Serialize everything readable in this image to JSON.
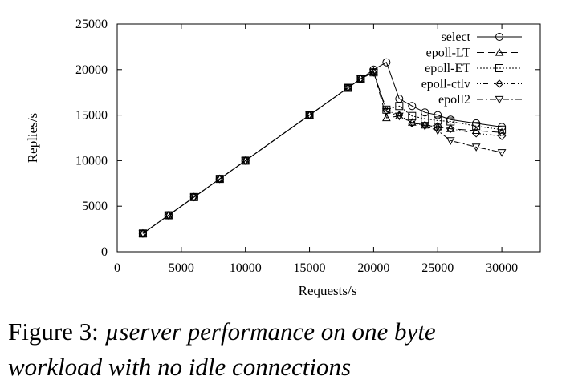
{
  "caption": {
    "label": "Figure 3:",
    "line1": "µserver performance on one byte",
    "line2": "workload with no idle connections"
  },
  "chart_data": {
    "type": "line",
    "xlabel": "Requests/s",
    "ylabel": "Replies/s",
    "xlim": [
      0,
      33000
    ],
    "ylim": [
      0,
      25000
    ],
    "xticks": [
      0,
      5000,
      10000,
      15000,
      20000,
      25000,
      30000
    ],
    "yticks": [
      0,
      5000,
      10000,
      15000,
      20000,
      25000
    ],
    "grid": false,
    "legend_position": "top-right",
    "series": [
      {
        "name": "select",
        "marker": "circle",
        "dash": "",
        "x": [
          2000,
          4000,
          6000,
          8000,
          10000,
          15000,
          18000,
          19000,
          20000,
          21000,
          22000,
          23000,
          24000,
          25000,
          26000,
          28000,
          30000
        ],
        "y": [
          2000,
          4000,
          6000,
          8000,
          10000,
          15000,
          18000,
          19000,
          20000,
          20800,
          16800,
          16000,
          15300,
          15000,
          14500,
          14100,
          13700
        ]
      },
      {
        "name": "epoll-LT",
        "marker": "triangle-up",
        "dash": "9,5",
        "x": [
          2000,
          4000,
          6000,
          8000,
          10000,
          15000,
          18000,
          19000,
          20000,
          21000,
          22000,
          23000,
          24000,
          25000,
          26000,
          28000,
          30000
        ],
        "y": [
          2000,
          4000,
          6000,
          8000,
          10000,
          15000,
          18000,
          19000,
          19800,
          14700,
          14900,
          14200,
          13900,
          13700,
          13500,
          13300,
          13100
        ]
      },
      {
        "name": "epoll-ET",
        "marker": "square",
        "dash": "2,2",
        "x": [
          2000,
          4000,
          6000,
          8000,
          10000,
          15000,
          18000,
          19000,
          20000,
          21000,
          22000,
          23000,
          24000,
          25000,
          26000,
          28000,
          30000
        ],
        "y": [
          2000,
          4000,
          6000,
          8000,
          10000,
          15000,
          18000,
          19000,
          19700,
          15600,
          16000,
          14900,
          14600,
          14400,
          14300,
          13800,
          13400
        ]
      },
      {
        "name": "epoll-ctlv",
        "marker": "diamond",
        "dash": "1,3,1,3,6,3",
        "x": [
          2000,
          4000,
          6000,
          8000,
          10000,
          15000,
          18000,
          19000,
          20000,
          21000,
          22000,
          23000,
          24000,
          25000,
          26000,
          28000,
          30000
        ],
        "y": [
          2000,
          4000,
          6000,
          8000,
          10000,
          15000,
          18000,
          19000,
          19700,
          15500,
          15000,
          14100,
          13900,
          13800,
          13500,
          13000,
          12700
        ]
      },
      {
        "name": "epoll2",
        "marker": "triangle-down",
        "dash": "8,3,2,3",
        "x": [
          2000,
          4000,
          6000,
          8000,
          10000,
          15000,
          18000,
          19000,
          20000,
          21000,
          22000,
          23000,
          24000,
          25000,
          26000,
          28000,
          30000
        ],
        "y": [
          2000,
          4000,
          6000,
          8000,
          10000,
          15000,
          18000,
          19000,
          19700,
          15400,
          14900,
          14200,
          13800,
          13300,
          12200,
          11500,
          10900
        ]
      }
    ]
  }
}
